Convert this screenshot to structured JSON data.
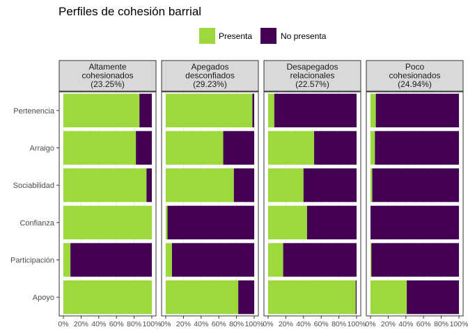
{
  "chart_data": {
    "type": "bar",
    "orientation": "horizontal",
    "stacked": true,
    "title": "Perfiles de cohesión barrial",
    "legend": {
      "placement": "top",
      "entries": [
        {
          "name": "Presenta",
          "color": "#9bd93c"
        },
        {
          "name": "No presenta",
          "color": "#440154"
        }
      ]
    },
    "categories": [
      "Pertenencia",
      "Arraigo",
      "Sociabilidad",
      "Confianza",
      "Participación",
      "Apoyo"
    ],
    "x_ticks": [
      "0%",
      "20%",
      "40%",
      "60%",
      "80%",
      "100%"
    ],
    "xlim": [
      0,
      1
    ],
    "grid": true,
    "panels": [
      {
        "label_lines": [
          "Altamente",
          "cohesionados",
          "(23.25%)"
        ],
        "presenta": [
          0.86,
          0.82,
          0.94,
          1.0,
          0.08,
          1.0
        ]
      },
      {
        "label_lines": [
          "Apegados",
          "desconfiados",
          "(29.23%)"
        ],
        "presenta": [
          0.98,
          0.65,
          0.77,
          0.02,
          0.07,
          0.82
        ]
      },
      {
        "label_lines": [
          "Desapegados",
          "relacionales",
          "(22.57%)"
        ],
        "presenta": [
          0.07,
          0.52,
          0.4,
          0.44,
          0.17,
          0.99
        ]
      },
      {
        "label_lines": [
          "Poco",
          "cohesionados",
          "(24.94%)"
        ],
        "presenta": [
          0.06,
          0.05,
          0.02,
          0.0,
          0.01,
          0.41
        ]
      }
    ]
  }
}
